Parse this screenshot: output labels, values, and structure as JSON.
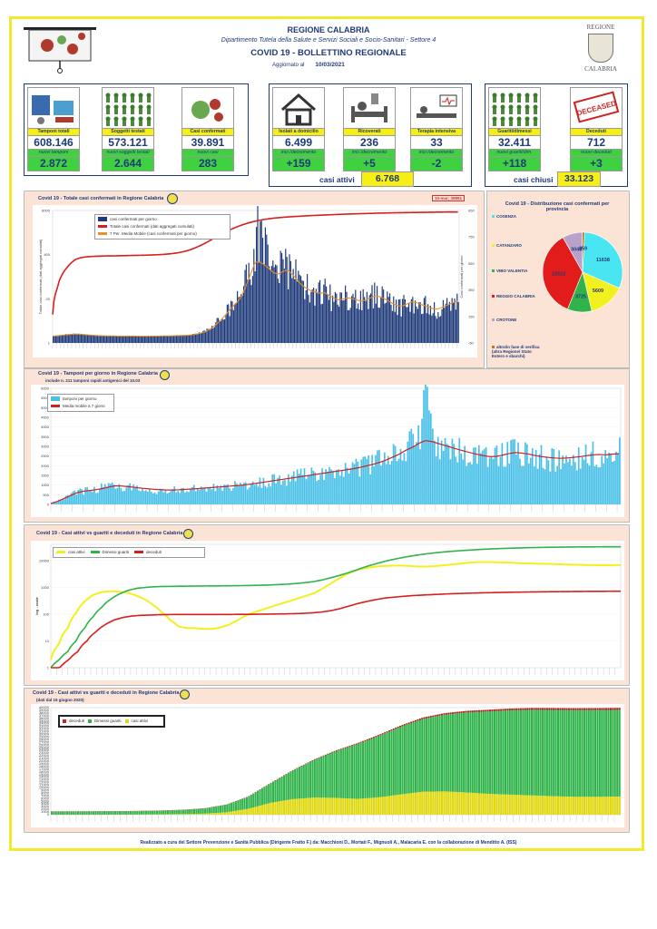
{
  "header": {
    "region": "REGIONE CALABRIA",
    "department": "Dipartimento Tutela della Salute e Servizi Sociali e Socio-Sanitari - Settore 4",
    "title": "COVID 19 - BOLLETTINO REGIONALE",
    "updated_label": "Aggiornato al",
    "updated_date": "10/03/2021",
    "crest_top": "REGIONE",
    "crest_bottom": "CALABRIA"
  },
  "tiles": [
    {
      "label": "Tamponi totali",
      "value": "608.146",
      "sub_label": "nuovi tamponi",
      "sub_value": "2.872",
      "icon": "lab-test-icon"
    },
    {
      "label": "Soggetti testati",
      "value": "573.121",
      "sub_label": "nuovi soggetti testati",
      "sub_value": "2.644",
      "icon": "people-grid-icon"
    },
    {
      "label": "Casi confermati",
      "value": "39.891",
      "sub_label": "nuovi casi",
      "sub_value": "283",
      "icon": "virus-people-icon"
    },
    {
      "label": "Isolati a domicilio",
      "value": "6.499",
      "sub_label": "incr./decremento",
      "sub_value": "+159",
      "icon": "house-icon"
    },
    {
      "label": "Ricoverati",
      "value": "236",
      "sub_label": "incr./decremento",
      "sub_value": "+5",
      "icon": "hospital-bed-icon"
    },
    {
      "label": "Terapia intensiva",
      "value": "33",
      "sub_label": "incr./decremento",
      "sub_value": "-2",
      "icon": "icu-bed-icon"
    },
    {
      "label": "Guariti/dimessi",
      "value": "32.411",
      "sub_label": "nuovi guariti/dim.",
      "sub_value": "+118",
      "icon": "recovered-person-icon"
    },
    {
      "label": "Deceduti",
      "value": "712",
      "sub_label": "nuovi deceduti",
      "sub_value": "+3",
      "icon": "deceased-stamp-icon",
      "stamp_text": "DECEASED"
    }
  ],
  "summary": {
    "active_label": "casi attivi",
    "active_value": "6.768",
    "closed_label": "casi chiusi",
    "closed_value": "33.123"
  },
  "colors": {
    "navy": "#1f3a7a",
    "red": "#d81e1e",
    "orange": "#e8902a",
    "cyan": "#49c0e8",
    "green": "#2fb34a",
    "yellow": "#f2f01e",
    "panel": "#fbe3d6"
  },
  "chart_data": [
    {
      "type": "bar",
      "title": "Covid 19 - Totale casi confermati in Regione Calabria",
      "annotation": "10-mar; 39891",
      "ylabel": "Totale casi confermati (dati aggregati cumulati)",
      "ylabel_right": "Casi confermati per giorno",
      "left_ticks": [
        "1",
        "20",
        "400",
        "8000"
      ],
      "right_ticks": [
        "-50",
        "150",
        "350",
        "550",
        "750",
        "950"
      ],
      "ylim_right": [
        -50,
        950
      ],
      "series": [
        {
          "name": "casi confermati per giorno",
          "values": [
            2,
            5,
            9,
            14,
            18,
            20,
            17,
            12,
            9,
            6,
            5,
            4,
            3,
            3,
            2,
            2,
            2,
            2,
            2,
            1,
            1,
            1,
            2,
            2,
            3,
            3,
            4,
            5,
            6,
            8,
            12,
            18,
            26,
            40,
            60,
            90,
            120,
            160,
            200,
            240,
            270,
            330,
            420,
            520,
            650,
            900,
            640,
            520,
            480,
            460,
            520,
            540,
            460,
            420,
            380,
            360,
            340,
            330,
            320,
            340,
            300,
            280,
            260,
            280,
            300,
            290,
            270,
            260,
            280,
            300,
            320,
            310,
            280,
            260,
            240,
            220,
            230,
            250,
            270,
            260,
            240,
            230,
            210,
            200,
            210,
            230,
            250,
            270,
            283
          ]
        },
        {
          "name": "Totale casi confermati (dati aggregati cumulati)",
          "values": [
            10,
            80,
            240,
            420,
            640,
            860,
            980,
            1040,
            1080,
            1100,
            1120,
            1130,
            1140,
            1145,
            1150,
            1160,
            1170,
            1180,
            1190,
            1200,
            1210,
            1220,
            1240,
            1260,
            1290,
            1330,
            1380,
            1450,
            1550,
            1700,
            1900,
            2200,
            2600,
            3100,
            3800,
            4700,
            5800,
            7100,
            8600,
            10200,
            11900,
            13700,
            15500,
            17200,
            18900,
            20500,
            21900,
            23100,
            24200,
            25100,
            25900,
            26600,
            27300,
            27900,
            28500,
            29100,
            29700,
            30200,
            30700,
            31200,
            31700,
            32200,
            32700,
            33200,
            33600,
            34000,
            34400,
            34800,
            35200,
            35600,
            36000,
            36300,
            36600,
            36900,
            37200,
            37500,
            37800,
            38000,
            38200,
            38400,
            38600,
            38800,
            39000,
            39200,
            39400,
            39550,
            39700,
            39800,
            39891
          ]
        },
        {
          "name": "7 Per. Media Mobile (casi confermati per giorno)",
          "values": [
            2,
            4,
            8,
            12,
            15,
            17,
            16,
            13,
            10,
            7,
            5,
            4,
            3,
            3,
            2,
            2,
            2,
            2,
            2,
            1,
            1,
            1,
            2,
            2,
            3,
            3,
            4,
            5,
            6,
            7,
            10,
            15,
            22,
            33,
            50,
            75,
            105,
            140,
            180,
            220,
            255,
            300,
            380,
            470,
            560,
            560,
            540,
            510,
            480,
            470,
            490,
            500,
            470,
            430,
            390,
            365,
            345,
            335,
            325,
            330,
            310,
            290,
            275,
            280,
            290,
            285,
            275,
            265,
            275,
            290,
            305,
            300,
            285,
            265,
            245,
            230,
            230,
            245,
            260,
            255,
            240,
            230,
            215,
            205,
            210,
            225,
            240,
            255,
            265
          ]
        }
      ]
    },
    {
      "type": "bar",
      "title": "Covid 19 - Tamponi per giorno in Regione Calabria",
      "subtitle": "include n. 211 tamponi rapidi antigenici del 10.03",
      "yticks": [
        "0",
        "500",
        "1000",
        "1500",
        "2000",
        "2500",
        "3000",
        "3500",
        "4000",
        "4500",
        "5000",
        "5500",
        "6000"
      ],
      "ylim": [
        0,
        6000
      ],
      "series": [
        {
          "name": "tamponi per giorno",
          "values": [
            50,
            200,
            350,
            500,
            650,
            700,
            750,
            800,
            900,
            1000,
            1100,
            950,
            900,
            850,
            800,
            780,
            760,
            740,
            720,
            750,
            780,
            800,
            820,
            850,
            880,
            900,
            920,
            950,
            980,
            1000,
            1050,
            1100,
            1150,
            1200,
            1250,
            1300,
            1350,
            1400,
            1450,
            1500,
            1550,
            1600,
            1650,
            1700,
            1750,
            1800,
            1850,
            1900,
            2000,
            2100,
            2200,
            2300,
            2500,
            2700,
            2900,
            3100,
            3300,
            3500,
            5900,
            3400,
            3100,
            3000,
            2900,
            2800,
            2700,
            2600,
            2500,
            2450,
            2400,
            2500,
            2700,
            2800,
            2900,
            2700,
            2600,
            2500,
            2450,
            2400,
            2350,
            2300,
            2400,
            2450,
            2500,
            2600,
            2700,
            2650,
            2600,
            2800,
            2872
          ]
        },
        {
          "name": "Media mobile a 7 giorni",
          "values": [
            50,
            150,
            300,
            450,
            600,
            680,
            720,
            760,
            820,
            900,
            960,
            950,
            920,
            880,
            840,
            810,
            780,
            760,
            745,
            745,
            760,
            780,
            800,
            825,
            850,
            875,
            900,
            925,
            950,
            975,
            1010,
            1050,
            1100,
            1150,
            1200,
            1250,
            1300,
            1350,
            1400,
            1450,
            1500,
            1550,
            1600,
            1650,
            1700,
            1750,
            1800,
            1850,
            1920,
            2000,
            2080,
            2180,
            2300,
            2450,
            2600,
            2800,
            2950,
            3150,
            3300,
            3250,
            3150,
            3050,
            2950,
            2850,
            2760,
            2670,
            2590,
            2520,
            2470,
            2480,
            2550,
            2630,
            2680,
            2650,
            2600,
            2530,
            2470,
            2430,
            2400,
            2380,
            2400,
            2430,
            2470,
            2520,
            2560,
            2580,
            2560,
            2600,
            2620
          ]
        }
      ]
    },
    {
      "type": "line",
      "title": "Covid 19 - Casi attivi vs guariti e deceduti in Regione Calabria",
      "ylabel": "log - scale",
      "yticks": [
        "1",
        "10",
        "100",
        "1000",
        "10000"
      ],
      "log_scale": true,
      "series": [
        {
          "name": "casi attivi",
          "values": [
            2,
            8,
            30,
            110,
            300,
            520,
            660,
            720,
            690,
            620,
            500,
            360,
            220,
            120,
            60,
            35,
            30,
            30,
            28,
            28,
            32,
            40,
            60,
            90,
            120,
            150,
            190,
            240,
            300,
            380,
            480,
            600,
            900,
            1400,
            2200,
            3300,
            4400,
            5200,
            5800,
            6200,
            6400,
            6500,
            6300,
            6000,
            5900,
            6100,
            6500,
            7000,
            7600,
            8200,
            8600,
            8800,
            8700,
            8500,
            8300,
            8000,
            7800,
            7600,
            7500,
            7400,
            7200,
            7000,
            6900,
            6800,
            6700,
            6650,
            6700,
            6768
          ]
        },
        {
          "name": "Dimessi guariti",
          "values": [
            1,
            2,
            4,
            10,
            30,
            80,
            180,
            350,
            550,
            750,
            900,
            980,
            1040,
            1070,
            1080,
            1090,
            1100,
            1110,
            1120,
            1125,
            1130,
            1140,
            1150,
            1160,
            1180,
            1200,
            1230,
            1270,
            1320,
            1400,
            1500,
            1650,
            1900,
            2300,
            2800,
            3500,
            4500,
            5800,
            7200,
            8800,
            10500,
            12200,
            14000,
            15700,
            17400,
            19000,
            20500,
            21800,
            23000,
            24200,
            25300,
            26300,
            27200,
            28000,
            28700,
            29300,
            29900,
            30400,
            30800,
            31200,
            31500,
            31800,
            32000,
            32150,
            32250,
            32320,
            32380,
            32411
          ]
        },
        {
          "name": "deceduti",
          "values": [
            1,
            1,
            2,
            4,
            10,
            22,
            40,
            60,
            75,
            85,
            90,
            92,
            95,
            96,
            97,
            97,
            97,
            97,
            97,
            97,
            97,
            98,
            98,
            99,
            100,
            101,
            102,
            104,
            107,
            112,
            120,
            135,
            160,
            200,
            250,
            300,
            350,
            400,
            430,
            460,
            490,
            510,
            530,
            550,
            570,
            585,
            600,
            612,
            625,
            635,
            645,
            655,
            662,
            670,
            676,
            682,
            688,
            693,
            698,
            702,
            705,
            708,
            710,
            712
          ]
        }
      ]
    },
    {
      "type": "pie",
      "title": "Covid 19 - Distribuzione casi confermati per provincia",
      "labels": [
        "COSENZA",
        "CATANZARO",
        "VIBO VALENTIA",
        "REGGIO CALABRIA",
        "CROTONE",
        "altro/in fase di verifica (altra Regione/ Stato Estero e sbarchi)"
      ],
      "values": [
        11638,
        5609,
        3725,
        13512,
        3048,
        359
      ]
    },
    {
      "type": "area",
      "title": "Covid 19 - Casi attivi vs guariti e deceduti in Regione Calabria",
      "subtitle": "(dati dal 15 giugno 2020)",
      "yticks": [
        "0",
        "1000",
        "2000",
        "3000",
        "4000",
        "5000",
        "6000",
        "7000",
        "8000",
        "9000",
        "10000",
        "11000",
        "12000",
        "13000",
        "14000",
        "15000",
        "16000",
        "17000",
        "18000",
        "19000",
        "20000",
        "21000",
        "22000",
        "23000",
        "24000",
        "25000",
        "26000",
        "27000",
        "28000",
        "29000",
        "30000",
        "31000",
        "32000",
        "33000",
        "34000",
        "35000",
        "36000",
        "37000",
        "38000",
        "39000",
        "40000"
      ],
      "ylim": [
        0,
        40000
      ],
      "series": [
        {
          "name": "deceduti",
          "values": [
            97,
            97,
            97,
            97,
            98,
            99,
            100,
            102,
            106,
            112,
            125,
            150,
            200,
            260,
            330,
            400,
            460,
            510,
            550,
            590,
            620,
            645,
            665,
            680,
            695,
            705,
            712
          ]
        },
        {
          "name": "Dimessi guariti",
          "values": [
            1120,
            1130,
            1150,
            1180,
            1230,
            1320,
            1500,
            1900,
            2800,
            4500,
            7200,
            10500,
            14000,
            17400,
            20500,
            23000,
            25300,
            27200,
            28700,
            29900,
            30800,
            31500,
            32000,
            32250,
            32380,
            32400,
            32411
          ]
        },
        {
          "name": "casi attivi",
          "values": [
            30,
            28,
            30,
            45,
            90,
            150,
            240,
            400,
            900,
            2200,
            4400,
            5800,
            6400,
            6300,
            5900,
            6500,
            7600,
            8600,
            8700,
            8300,
            7800,
            7500,
            7200,
            6900,
            6700,
            6700,
            6768
          ]
        }
      ]
    }
  ],
  "footer": "Realizzato a cura del Settore Prevenzione e Sanità Pubblica (Dirigente Fratto F.) da:  Macchioni D., Mortati F., Mignuoli A., Malacaria E. con la collaborazione di Menditto A. (ISS)"
}
